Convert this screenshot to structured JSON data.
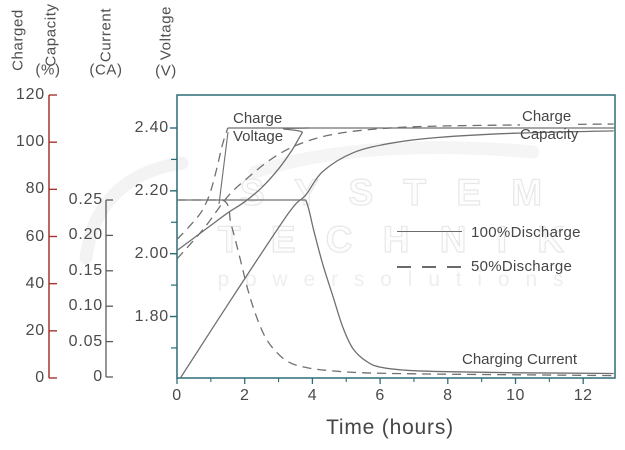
{
  "watermark": {
    "line1": "S Y S T E M",
    "line2": "T E C H N I K",
    "line3": "p o w e r   s o l u t i o n s"
  },
  "axis_headers": {
    "capacity_word1": "Charged",
    "capacity_word2": "Capacity",
    "capacity_unit": "(%)",
    "current_word": "Current",
    "current_unit": "(CA)",
    "voltage_word": "Voltage",
    "voltage_unit": "(V)"
  },
  "curve_labels": {
    "charge_voltage_line1": "Charge",
    "charge_voltage_line2": "Voltage",
    "charge_capacity_line1": "Charge",
    "charge_capacity_line2": "Capacity",
    "charging_current": "Charging Current"
  },
  "legend": {
    "items": [
      {
        "label": "100%Discharge",
        "style": "solid"
      },
      {
        "label": "50%Discharge",
        "style": "dashed"
      }
    ]
  },
  "x_axis": {
    "title": "Time (hours)",
    "tick_labels": [
      "0",
      "2",
      "4",
      "6",
      "8",
      "10",
      "12"
    ],
    "tick_hours": [
      0,
      2,
      4,
      6,
      8,
      10,
      12
    ],
    "minor_hours": [
      1,
      3,
      5,
      7,
      9,
      11
    ],
    "range_hours": [
      0,
      12.95
    ]
  },
  "y_axes": {
    "capacity": {
      "unit": "%",
      "tick_labels": [
        "120",
        "100",
        "80",
        "60",
        "40",
        "20",
        "0"
      ],
      "tick_values": [
        120,
        100,
        80,
        60,
        40,
        20,
        0
      ],
      "range": [
        0,
        120
      ],
      "color": "#a53430"
    },
    "current": {
      "unit": "CA",
      "tick_labels": [
        "0.25",
        "0.20",
        "0.15",
        "0.10",
        "0.05",
        "0"
      ],
      "tick_values": [
        0.25,
        0.2,
        0.15,
        0.1,
        0.05,
        0
      ],
      "range": [
        0,
        0.25
      ],
      "color": "#5a5a5a"
    },
    "voltage": {
      "unit": "V",
      "tick_labels": [
        "2.40",
        "2.20",
        "2.00",
        "1.80"
      ],
      "tick_values": [
        2.4,
        2.2,
        2.0,
        1.8
      ],
      "minor_values": [
        2.3,
        2.1,
        1.9,
        1.7
      ],
      "range": [
        1.65,
        2.5
      ],
      "color": "#266b76"
    }
  },
  "chart_data": {
    "type": "line",
    "title": "",
    "xlabel": "Time (hours)",
    "x_range": [
      0,
      12.95
    ],
    "legend_position": "middle-right",
    "grid": false,
    "series": [
      {
        "name": "Charge Voltage (100% Discharge)",
        "axis": "voltage",
        "style": "solid",
        "points": [
          [
            0,
            2.01
          ],
          [
            0.5,
            2.05
          ],
          [
            1.0,
            2.09
          ],
          [
            1.5,
            2.13
          ],
          [
            2.0,
            2.165
          ],
          [
            2.5,
            2.21
          ],
          [
            3.0,
            2.27
          ],
          [
            3.4,
            2.33
          ],
          [
            3.7,
            2.385
          ],
          [
            3.85,
            2.4
          ],
          [
            12.95,
            2.4
          ]
        ]
      },
      {
        "name": "Charge Voltage (50% Discharge)",
        "axis": "voltage",
        "style": "dashed",
        "points": [
          [
            0,
            2.045
          ],
          [
            0.35,
            2.085
          ],
          [
            0.7,
            2.13
          ],
          [
            0.95,
            2.185
          ],
          [
            1.15,
            2.26
          ],
          [
            1.35,
            2.35
          ],
          [
            1.5,
            2.4
          ]
        ]
      },
      {
        "name": "Charge Voltage CV plateau (50% Discharge)",
        "axis": "voltage",
        "style": "solid",
        "points": [
          [
            1.5,
            2.4
          ],
          [
            3.9,
            2.4
          ]
        ]
      },
      {
        "name": "Charging Current (100% Discharge)",
        "axis": "current",
        "style": "solid",
        "points": [
          [
            0,
            0.25
          ],
          [
            2.0,
            0.25
          ],
          [
            3.5,
            0.25
          ],
          [
            3.8,
            0.25
          ],
          [
            4.05,
            0.205
          ],
          [
            4.3,
            0.16
          ],
          [
            4.6,
            0.115
          ],
          [
            4.9,
            0.07
          ],
          [
            5.2,
            0.04
          ],
          [
            5.6,
            0.022
          ],
          [
            6.0,
            0.014
          ],
          [
            6.8,
            0.0095
          ],
          [
            8.0,
            0.0075
          ],
          [
            10,
            0.006
          ],
          [
            12.9,
            0.005
          ]
        ]
      },
      {
        "name": "Charging Current (50% Discharge)",
        "axis": "current",
        "style": "dashed",
        "points": [
          [
            0,
            0.25
          ],
          [
            1.35,
            0.25
          ],
          [
            1.6,
            0.215
          ],
          [
            1.85,
            0.17
          ],
          [
            2.1,
            0.122
          ],
          [
            2.35,
            0.085
          ],
          [
            2.6,
            0.057
          ],
          [
            2.9,
            0.037
          ],
          [
            3.3,
            0.021
          ],
          [
            3.8,
            0.0135
          ],
          [
            4.5,
            0.009
          ],
          [
            5.5,
            0.006
          ],
          [
            7,
            0.0045
          ],
          [
            9,
            0.0035
          ],
          [
            12.9,
            0.002
          ]
        ]
      },
      {
        "name": "Charge Capacity (100% Discharge)",
        "axis": "capacity",
        "style": "solid",
        "points": [
          [
            0.1,
            0
          ],
          [
            1.7,
            35.5
          ],
          [
            3.3,
            70
          ],
          [
            3.8,
            77.5
          ],
          [
            4.3,
            87.5
          ],
          [
            5.2,
            95.5
          ],
          [
            6.3,
            99.5
          ],
          [
            7.7,
            102
          ],
          [
            10,
            103.8
          ],
          [
            12.9,
            104.8
          ]
        ]
      },
      {
        "name": "Charge Capacity (50% Discharge)",
        "axis": "capacity",
        "style": "dashed",
        "points": [
          [
            0,
            50.5
          ],
          [
            0.8,
            63.5
          ],
          [
            1.5,
            77
          ],
          [
            2.1,
            85
          ],
          [
            2.75,
            92.5
          ],
          [
            3.5,
            98.5
          ],
          [
            4.5,
            103
          ],
          [
            5.9,
            105.6
          ],
          [
            8,
            106.9
          ],
          [
            12.9,
            107.7
          ]
        ]
      }
    ]
  }
}
